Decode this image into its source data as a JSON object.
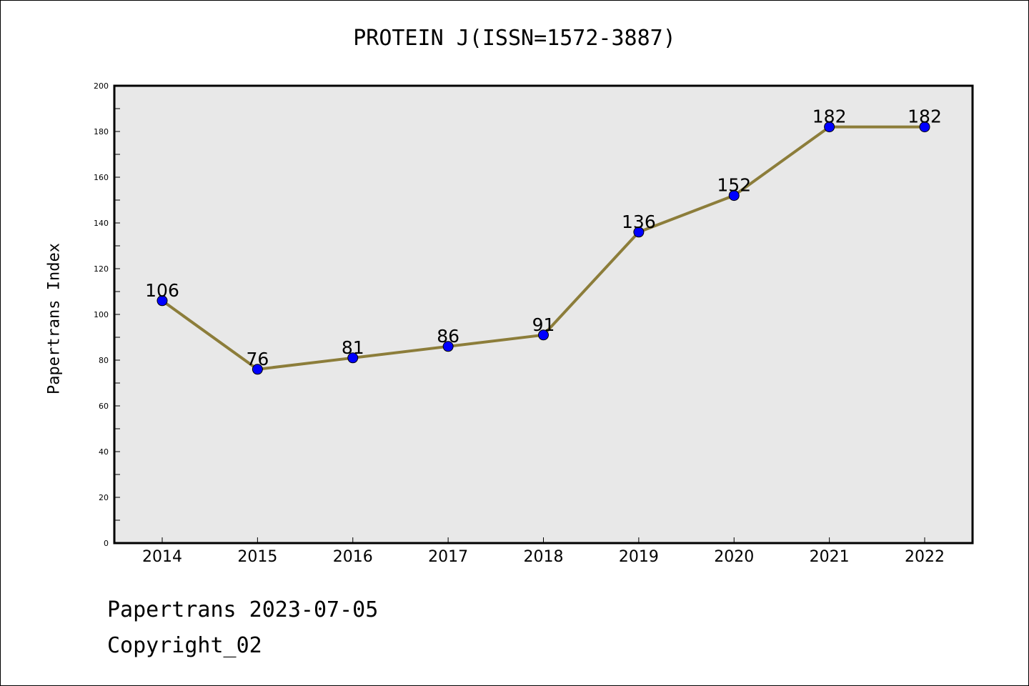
{
  "chart_data": {
    "type": "line",
    "title": "PROTEIN J(ISSN=1572-3887)",
    "ylabel": "Papertrans Index",
    "xlabel": "",
    "x": [
      "2014",
      "2015",
      "2016",
      "2017",
      "2018",
      "2019",
      "2020",
      "2021",
      "2022"
    ],
    "series": [
      {
        "values": [
          106,
          76,
          81,
          86,
          91,
          136,
          152,
          182,
          182
        ]
      }
    ],
    "ylim": [
      0,
      200
    ],
    "yticks": [
      0,
      20,
      40,
      60,
      80,
      100,
      120,
      140,
      160,
      180,
      200
    ],
    "grid": false,
    "line_color": "#8c7d3a",
    "marker_color": "#0000ff",
    "plot_background": "#e8e8e8"
  },
  "footer": {
    "line1": "Papertrans 2023-07-05",
    "line2": "Copyright_02"
  }
}
